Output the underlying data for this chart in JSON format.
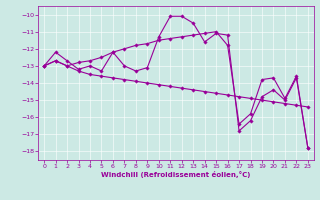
{
  "title": "",
  "xlabel": "Windchill (Refroidissement éolien,°C)",
  "ylabel": "",
  "background_color": "#cce9e4",
  "line_color": "#990099",
  "xlim": [
    -0.5,
    23.5
  ],
  "ylim": [
    -18.5,
    -9.5
  ],
  "yticks": [
    -18,
    -17,
    -16,
    -15,
    -14,
    -13,
    -12,
    -11,
    -10
  ],
  "xticks": [
    0,
    1,
    2,
    3,
    4,
    5,
    6,
    7,
    8,
    9,
    10,
    11,
    12,
    13,
    14,
    15,
    16,
    17,
    18,
    19,
    20,
    21,
    22,
    23
  ],
  "series1_x": [
    0,
    1,
    2,
    3,
    4,
    5,
    6,
    7,
    8,
    9,
    10,
    11,
    12,
    13,
    14,
    15,
    16,
    17,
    18,
    19,
    20,
    21,
    22,
    23
  ],
  "series1_y": [
    -13.0,
    -12.2,
    -12.7,
    -13.2,
    -13.0,
    -13.3,
    -12.2,
    -13.0,
    -13.3,
    -13.1,
    -11.3,
    -10.1,
    -10.1,
    -10.5,
    -11.6,
    -11.1,
    -11.2,
    -16.8,
    -16.2,
    -14.8,
    -14.4,
    -15.0,
    -13.7,
    -17.8
  ],
  "series2_x": [
    0,
    1,
    2,
    3,
    4,
    5,
    6,
    7,
    8,
    9,
    10,
    11,
    12,
    13,
    14,
    15,
    16,
    17,
    18,
    19,
    20,
    21,
    22,
    23
  ],
  "series2_y": [
    -13.0,
    -12.7,
    -13.0,
    -13.3,
    -13.5,
    -13.6,
    -13.7,
    -13.8,
    -13.9,
    -14.0,
    -14.1,
    -14.2,
    -14.3,
    -14.4,
    -14.5,
    -14.6,
    -14.7,
    -14.8,
    -14.9,
    -15.0,
    -15.1,
    -15.2,
    -15.3,
    -15.4
  ],
  "series3_x": [
    0,
    1,
    2,
    3,
    4,
    5,
    6,
    7,
    8,
    9,
    10,
    11,
    12,
    13,
    14,
    15,
    16,
    17,
    18,
    19,
    20,
    21,
    22,
    23
  ],
  "series3_y": [
    -13.0,
    -12.7,
    -13.0,
    -12.8,
    -12.7,
    -12.5,
    -12.2,
    -12.0,
    -11.8,
    -11.7,
    -11.5,
    -11.4,
    -11.3,
    -11.2,
    -11.1,
    -11.0,
    -11.8,
    -16.4,
    -15.8,
    -13.8,
    -13.7,
    -14.9,
    -13.6,
    -17.8
  ],
  "marker": "D",
  "markersize": 1.8,
  "linewidth": 0.8,
  "tick_labelsize": 4.5,
  "xlabel_fontsize": 5.0
}
